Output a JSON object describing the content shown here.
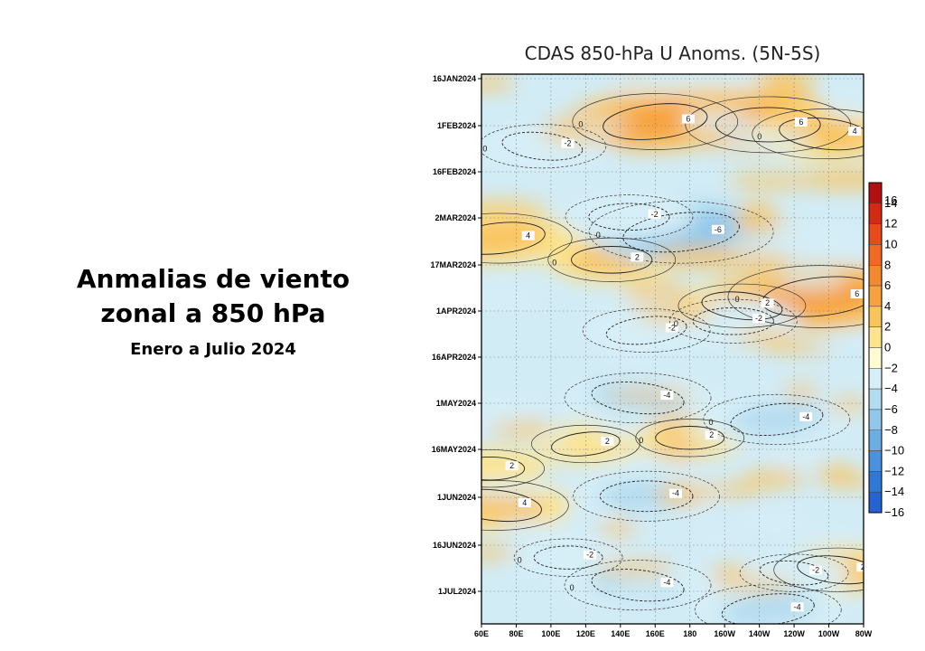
{
  "slide": {
    "title_line1": "Anmalias de viento",
    "title_line2": "zonal a 850 hPa",
    "subtitle": "Enero a Julio 2024"
  },
  "chart_data": {
    "type": "heatmap",
    "title": "CDAS 850-hPa U Anoms. (5N-5S)",
    "xlabel": "",
    "ylabel": "",
    "x_ticks": [
      "60E",
      "80E",
      "100E",
      "120E",
      "140E",
      "160E",
      "180",
      "160W",
      "140W",
      "120W",
      "100W",
      "80W"
    ],
    "x_range_deg_east": [
      60,
      280
    ],
    "y_ticks": [
      "16JAN2024",
      "1FEB2024",
      "16FEB2024",
      "2MAR2024",
      "17MAR2024",
      "1APR2024",
      "16APR2024",
      "1MAY2024",
      "16MAY2024",
      "1JUN2024",
      "16JUN2024",
      "1JUL2024"
    ],
    "y_axis_direction": "time increases downward",
    "colorbar_levels": [
      16,
      14,
      12,
      10,
      8,
      6,
      4,
      2,
      0,
      -2,
      -4,
      -6,
      -8,
      -10,
      -12,
      -14,
      -16
    ],
    "colorbar_colors": [
      "#b21010",
      "#d42a14",
      "#e84a1a",
      "#f26a22",
      "#f5892f",
      "#f7a23f",
      "#f9c35e",
      "#fde38c",
      "#fffbd2",
      "#d6eef7",
      "#b4dcf0",
      "#91c7ea",
      "#6aaee3",
      "#4a92dd",
      "#3179d6",
      "#2463d0"
    ],
    "grid": true,
    "contour_line_labels": [
      "-2",
      "0",
      "2",
      "4",
      "6",
      "-4",
      "-6"
    ],
    "anomaly_features": [
      {
        "lon": 160,
        "date": "2024-01-30",
        "value": 5
      },
      {
        "lon": 225,
        "date": "2024-01-31",
        "value": 5
      },
      {
        "lon": 258,
        "date": "2024-02-03",
        "value": 4
      },
      {
        "lon": 70,
        "date": "2024-03-08",
        "value": 4
      },
      {
        "lon": 135,
        "date": "2024-03-15",
        "value": 3
      },
      {
        "lon": 210,
        "date": "2024-03-30",
        "value": 3
      },
      {
        "lon": 255,
        "date": "2024-03-27",
        "value": 6
      },
      {
        "lon": 65,
        "date": "2024-05-22",
        "value": 2
      },
      {
        "lon": 68,
        "date": "2024-06-03",
        "value": 4
      },
      {
        "lon": 120,
        "date": "2024-05-14",
        "value": 2
      },
      {
        "lon": 180,
        "date": "2024-05-12",
        "value": 2
      },
      {
        "lon": 265,
        "date": "2024-06-24",
        "value": 3
      },
      {
        "lon": 175,
        "date": "2024-03-06",
        "value": -6
      },
      {
        "lon": 145,
        "date": "2024-03-01",
        "value": -3
      },
      {
        "lon": 95,
        "date": "2024-02-07",
        "value": -3
      },
      {
        "lon": 155,
        "date": "2024-04-07",
        "value": -3
      },
      {
        "lon": 205,
        "date": "2024-04-04",
        "value": -3
      },
      {
        "lon": 150,
        "date": "2024-04-29",
        "value": -4
      },
      {
        "lon": 230,
        "date": "2024-05-06",
        "value": -4
      },
      {
        "lon": 155,
        "date": "2024-05-31",
        "value": -4
      },
      {
        "lon": 150,
        "date": "2024-06-29",
        "value": -4
      },
      {
        "lon": 225,
        "date": "2024-07-07",
        "value": -4
      },
      {
        "lon": 110,
        "date": "2024-06-20",
        "value": -2
      },
      {
        "lon": 240,
        "date": "2024-06-25",
        "value": -2
      }
    ]
  }
}
